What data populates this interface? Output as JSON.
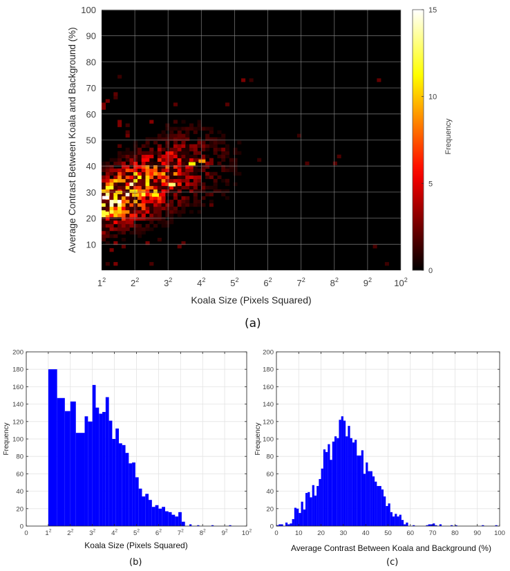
{
  "figure": {
    "panel_a_label": "(a)",
    "panel_b_label": "(b)",
    "panel_c_label": "(c)"
  },
  "chart_data": [
    {
      "id": "a",
      "type": "heatmap",
      "title": "",
      "xlabel": "Koala Size (Pixels Squared)",
      "ylabel": "Average Contrast Between Koala and Background (%)",
      "x_ticks": [
        "1²",
        "2²",
        "3²",
        "4²",
        "5²",
        "6²",
        "7²",
        "8²",
        "9²",
        "10²"
      ],
      "y_ticks": [
        "10",
        "20",
        "30",
        "40",
        "50",
        "60",
        "70",
        "80",
        "90",
        "100"
      ],
      "ylim": [
        0,
        100
      ],
      "grid": true,
      "colormap": "hot",
      "colorbar": {
        "label": "Frequency",
        "ticks": [
          "0",
          "5",
          "10",
          "15"
        ],
        "range": [
          0,
          15
        ]
      },
      "hotspots": [
        {
          "x_sqrt": 1.1,
          "y": 28,
          "freq": 15
        },
        {
          "x_sqrt": 1.1,
          "y": 22,
          "freq": 12
        },
        {
          "x_sqrt": 1.5,
          "y": 30,
          "freq": 10
        },
        {
          "x_sqrt": 2.0,
          "y": 29,
          "freq": 10
        },
        {
          "x_sqrt": 2.6,
          "y": 29,
          "freq": 11
        },
        {
          "x_sqrt": 3.1,
          "y": 33,
          "freq": 13
        },
        {
          "x_sqrt": 3.7,
          "y": 41,
          "freq": 11
        },
        {
          "x_sqrt": 4.0,
          "y": 42,
          "freq": 9
        }
      ],
      "description": "Density concentrated at small sizes (1²–4²) with contrast 15–45%; sparse low counts extend to ~9² and up to ~99% contrast."
    },
    {
      "id": "b",
      "type": "bar",
      "title": "",
      "xlabel": "Koala Size (Pixels Squared)",
      "ylabel": "Frequency",
      "x_ticks": [
        "0",
        "1²",
        "2²",
        "3²",
        "4²",
        "5²",
        "6²",
        "7²",
        "8²",
        "9²",
        "10²"
      ],
      "y_ticks": [
        "0",
        "20",
        "40",
        "60",
        "80",
        "100",
        "120",
        "140",
        "160",
        "180",
        "200"
      ],
      "ylim": [
        0,
        200
      ],
      "grid": true,
      "bar_color": "#0000ff",
      "bin_start_sqrt": [
        1.0,
        1.4,
        1.75,
        2.0,
        2.25,
        2.65,
        2.8,
        3.0,
        3.15,
        3.3,
        3.45,
        3.6,
        3.75,
        3.9,
        4.05,
        4.2,
        4.35,
        4.5,
        4.65,
        4.8,
        4.95,
        5.1,
        5.25,
        5.4,
        5.55,
        5.7,
        5.85,
        6.0,
        6.15,
        6.3,
        6.45,
        6.6,
        6.75,
        6.9,
        7.05,
        7.4,
        7.75,
        8.4,
        9.2
      ],
      "bin_end_sqrt": [
        1.4,
        1.75,
        2.0,
        2.25,
        2.65,
        2.8,
        3.0,
        3.15,
        3.3,
        3.45,
        3.6,
        3.75,
        3.9,
        4.05,
        4.2,
        4.35,
        4.5,
        4.65,
        4.8,
        4.95,
        5.1,
        5.25,
        5.4,
        5.55,
        5.7,
        5.85,
        6.0,
        6.15,
        6.3,
        6.45,
        6.6,
        6.75,
        6.9,
        7.05,
        7.2,
        7.5,
        7.85,
        8.5,
        9.3
      ],
      "values": [
        180,
        147,
        132,
        143,
        107,
        126,
        120,
        162,
        136,
        129,
        131,
        148,
        121,
        100,
        112,
        95,
        93,
        84,
        72,
        73,
        56,
        43,
        34,
        37,
        30,
        22,
        24,
        20,
        22,
        17,
        16,
        13,
        11,
        16,
        5,
        2,
        1,
        1,
        1
      ]
    },
    {
      "id": "c",
      "type": "bar",
      "title": "",
      "xlabel": "Average Contrast Between Koala and Background (%)",
      "ylabel": "Frequency",
      "x_ticks": [
        "0",
        "10",
        "20",
        "30",
        "40",
        "50",
        "60",
        "70",
        "80",
        "90",
        "100"
      ],
      "y_ticks": [
        "0",
        "20",
        "40",
        "60",
        "80",
        "100",
        "120",
        "140",
        "160",
        "180",
        "200"
      ],
      "xlim": [
        0,
        100
      ],
      "ylim": [
        0,
        200
      ],
      "grid": true,
      "bar_color": "#0000ff",
      "bin_width": 1,
      "bins_start": [
        1,
        2,
        3,
        4,
        5,
        6,
        7,
        8,
        9,
        10,
        11,
        12,
        13,
        14,
        15,
        16,
        17,
        18,
        19,
        20,
        21,
        22,
        23,
        24,
        25,
        26,
        27,
        28,
        29,
        30,
        31,
        32,
        33,
        34,
        35,
        36,
        37,
        38,
        39,
        40,
        41,
        42,
        43,
        44,
        45,
        46,
        47,
        48,
        49,
        50,
        51,
        52,
        53,
        54,
        55,
        56,
        57,
        58,
        59,
        62,
        68,
        69,
        70,
        71,
        72,
        74,
        79,
        81,
        93,
        99
      ],
      "values": [
        1,
        2,
        2,
        0,
        4,
        2,
        3,
        8,
        21,
        20,
        15,
        28,
        19,
        38,
        39,
        33,
        47,
        35,
        46,
        54,
        66,
        88,
        85,
        94,
        76,
        97,
        103,
        101,
        122,
        126,
        121,
        103,
        115,
        101,
        96,
        99,
        81,
        81,
        87,
        60,
        73,
        63,
        63,
        57,
        51,
        46,
        46,
        42,
        34,
        23,
        26,
        16,
        11,
        14,
        11,
        13,
        7,
        2,
        4,
        1,
        1,
        2,
        2,
        3,
        1,
        2,
        1,
        1,
        1,
        1
      ]
    }
  ]
}
